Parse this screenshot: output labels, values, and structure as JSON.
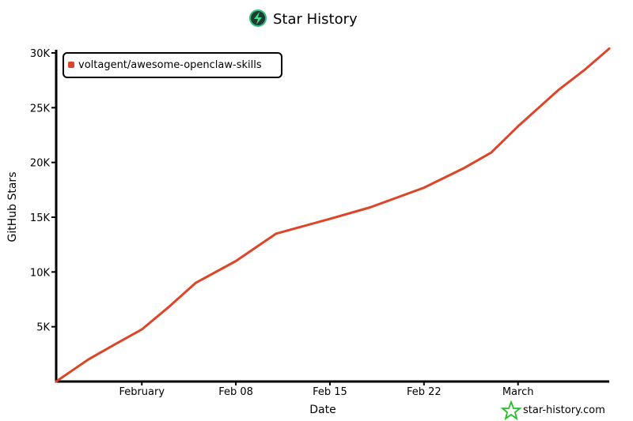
{
  "chart_data": {
    "type": "line",
    "title": "Star History",
    "xlabel": "Date",
    "ylabel": "GitHub Stars",
    "x_ticks": [
      {
        "date": "2026-02-01",
        "label": "February"
      },
      {
        "date": "2026-02-08",
        "label": "Feb 08"
      },
      {
        "date": "2026-02-15",
        "label": "Feb 15"
      },
      {
        "date": "2026-02-22",
        "label": "Feb 22"
      },
      {
        "date": "2026-03-01",
        "label": "March"
      }
    ],
    "y_ticks": [
      {
        "value": 5000,
        "label": "5K"
      },
      {
        "value": 10000,
        "label": "10K"
      },
      {
        "value": 15000,
        "label": "15K"
      },
      {
        "value": 20000,
        "label": "20K"
      },
      {
        "value": 25000,
        "label": "25K"
      },
      {
        "value": 30000,
        "label": "30K"
      }
    ],
    "xlim": [
      "2026-01-25T15:00",
      "2026-03-07T19:00"
    ],
    "ylim": [
      0,
      30000
    ],
    "grid": false,
    "legend_placement": "top-left",
    "series": [
      {
        "name": "voltagent/awesome-openclaw-skills",
        "color": "#dd4528",
        "points": [
          {
            "x": "2026-01-25T15:00",
            "y": 0
          },
          {
            "x": "2026-01-28",
            "y": 2000
          },
          {
            "x": "2026-01-30",
            "y": 3400
          },
          {
            "x": "2026-02-01",
            "y": 4750
          },
          {
            "x": "2026-02-03",
            "y": 6800
          },
          {
            "x": "2026-02-05",
            "y": 9000
          },
          {
            "x": "2026-02-08",
            "y": 11000
          },
          {
            "x": "2026-02-11",
            "y": 13500
          },
          {
            "x": "2026-02-15",
            "y": 14850
          },
          {
            "x": "2026-02-18",
            "y": 15900
          },
          {
            "x": "2026-02-22",
            "y": 17700
          },
          {
            "x": "2026-02-25",
            "y": 19500
          },
          {
            "x": "2026-02-27",
            "y": 20900
          },
          {
            "x": "2026-03-01",
            "y": 23300
          },
          {
            "x": "2026-03-04",
            "y": 26600
          },
          {
            "x": "2026-03-06",
            "y": 28500
          },
          {
            "x": "2026-03-07T19:00",
            "y": 30400
          }
        ]
      }
    ],
    "watermark": "star-history.com"
  }
}
